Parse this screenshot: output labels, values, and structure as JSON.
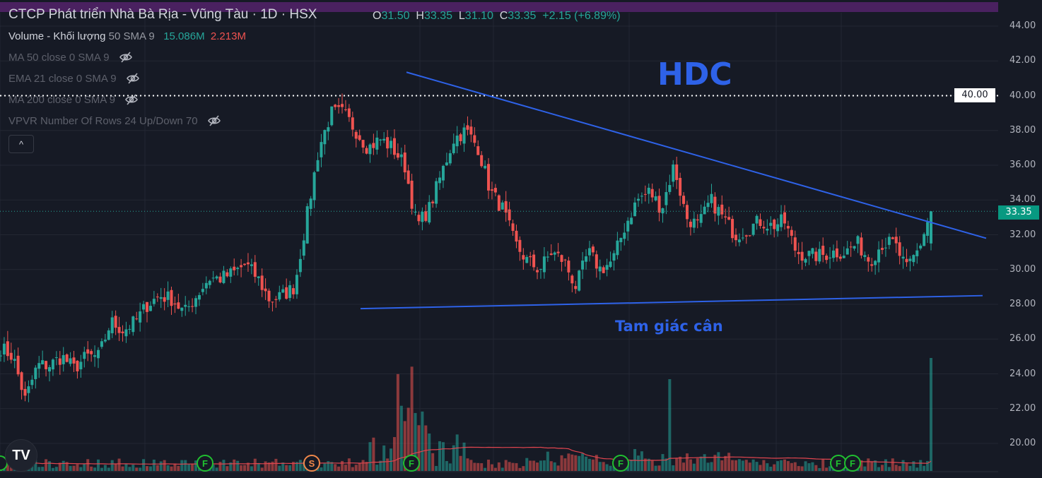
{
  "header": {
    "title": "CTCP Phát triển Nhà Bà Rịa - Vũng Tàu · 1D · HSX",
    "ohlc": {
      "o_label": "O",
      "o": "31.50",
      "h_label": "H",
      "h": "33.35",
      "l_label": "L",
      "l": "31.10",
      "c_label": "C",
      "c": "33.35",
      "change": "+2.15 (+6.89%)"
    },
    "volume": {
      "label": "Volume - Khối lượng",
      "params": "50 SMA 9",
      "value_up": "15.086M",
      "value_down": "2.213M"
    },
    "indicators": [
      {
        "label": "MA 50 close 0 SMA 9",
        "icon": "eye-off-icon"
      },
      {
        "label": "EMA 21 close 0 SMA 9",
        "icon": "eye-off-icon"
      },
      {
        "label": "MA 200 close 0 SMA 9",
        "icon": "eye-off-icon"
      },
      {
        "label": "VPVR Number Of Rows 24 Up/Down 70",
        "icon": "eye-off-icon"
      }
    ],
    "collapse_icon": "^"
  },
  "annotations": {
    "symbol_text": "HDC",
    "pattern_text": "Tam giác cân",
    "alert_level": "40.00",
    "last_price": "33.35"
  },
  "events": [
    "F",
    "S",
    "F",
    "F",
    "F",
    "F"
  ],
  "logo_text": "TV",
  "colors": {
    "up": "#26a69a",
    "down": "#ef5350",
    "trendline": "#2e62e8",
    "background": "#161a25",
    "volume_ma": "#e0454f",
    "banner": "#4a2160"
  },
  "chart_data": {
    "type": "candlestick",
    "y_axis": {
      "ticks": [
        "44.00",
        "42.00",
        "40.00",
        "38.00",
        "36.00",
        "34.00",
        "32.00",
        "30.00",
        "28.00",
        "26.00",
        "24.00",
        "22.00",
        "20.00"
      ],
      "ylim": [
        19,
        45
      ]
    },
    "close_path": [
      25.5,
      25,
      22.5,
      24.5,
      24.5,
      25,
      24.3,
      25,
      25,
      27,
      26.5,
      27,
      28,
      28.5,
      28.3,
      27.5,
      28.5,
      29.5,
      29.5,
      29.8,
      30.3,
      29.5,
      28.2,
      28.5,
      29,
      33,
      37,
      39,
      39,
      38,
      37,
      37.5,
      37,
      36,
      32.5,
      33.5,
      35.5,
      37.5,
      38,
      37,
      34.5,
      33.5,
      31.5,
      30.5,
      30,
      31,
      30.5,
      29,
      31,
      30,
      30.5,
      32.5,
      34,
      34.5,
      33.5,
      36,
      33,
      32.5,
      34,
      33,
      32,
      32.3,
      32.8,
      32.5,
      32.8,
      31,
      30.8,
      30.8,
      31,
      31,
      31.5,
      30.5,
      31.5,
      31.5,
      30,
      31.2,
      33.35
    ],
    "trendlines": [
      {
        "name": "upper",
        "from": 41.35,
        "to": 31.8
      },
      {
        "name": "lower",
        "from": 27.75,
        "to": 28.5
      }
    ],
    "horizontal_line": 40.0,
    "grid": true
  }
}
